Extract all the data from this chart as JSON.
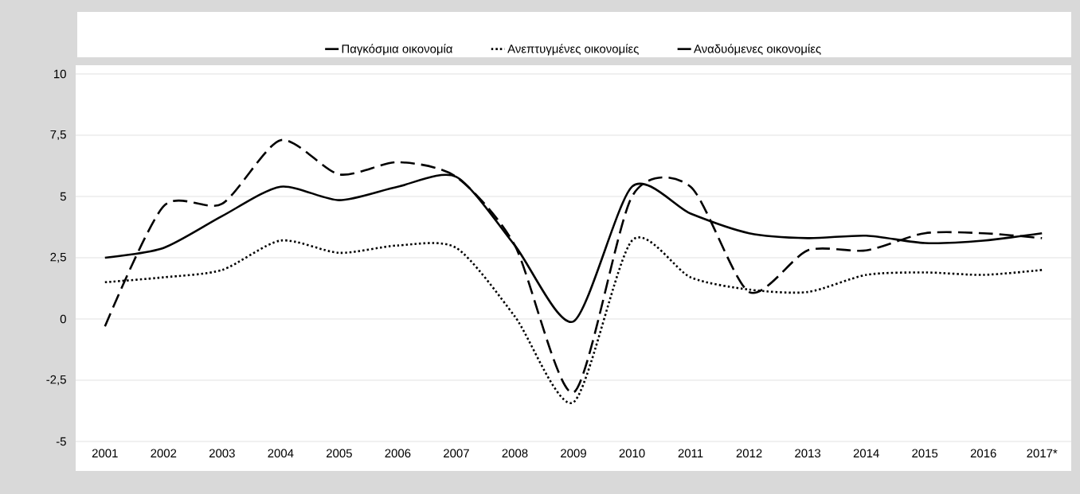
{
  "chart_data": {
    "type": "line",
    "categories": [
      "2001",
      "2002",
      "2003",
      "2004",
      "2005",
      "2006",
      "2007",
      "2008",
      "2009",
      "2010",
      "2011",
      "2012",
      "2013",
      "2014",
      "2015",
      "2016",
      "2017*"
    ],
    "series": [
      {
        "name": "Παγκόσμια οικονομία",
        "color": "#000000",
        "line_style": "solid",
        "values": [
          2.5,
          2.9,
          4.2,
          5.4,
          4.85,
          5.4,
          5.8,
          3.0,
          -0.1,
          5.4,
          4.3,
          3.5,
          3.3,
          3.4,
          3.1,
          3.2,
          3.5
        ]
      },
      {
        "name": "Ανεπτυγμένες οικονομίες",
        "color": "#000000",
        "line_style": "dotted",
        "values": [
          1.5,
          1.7,
          2.0,
          3.2,
          2.7,
          3.0,
          2.9,
          0.1,
          -3.4,
          3.2,
          1.7,
          1.2,
          1.1,
          1.8,
          1.9,
          1.8,
          2.0
        ]
      },
      {
        "name": "Αναδυόμενες οικονομίες",
        "color": "#000000",
        "line_style": "dashed",
        "values": [
          -0.3,
          4.6,
          4.7,
          7.3,
          5.9,
          6.4,
          5.8,
          3.0,
          -3.0,
          5.0,
          5.4,
          1.1,
          2.8,
          2.8,
          3.5,
          3.5,
          3.3
        ]
      }
    ],
    "ylim": [
      -5,
      10
    ],
    "yticks": [
      -5,
      {
        "value": -2.5,
        "label": "-2,5"
      },
      0,
      {
        "value": 2.5,
        "label": "2,5"
      },
      5,
      {
        "value": 7.5,
        "label": "7,5"
      },
      10
    ],
    "grid": "y",
    "legend": "top",
    "marker": "none"
  }
}
